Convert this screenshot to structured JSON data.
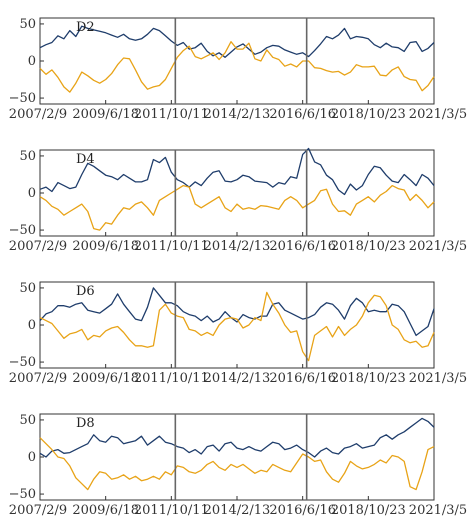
{
  "chart_data": [
    {
      "type": "line",
      "panel_label": "D2",
      "x_tick_labels": [
        "2007/2/9",
        "2009/6/18",
        "2011/10/11",
        "2014/2/13",
        "2016/6/16",
        "2018/10/23",
        "2021/3/5"
      ],
      "y_tick_labels": [
        "50",
        "0",
        "−50"
      ],
      "y_ticks": [
        50,
        0,
        -50
      ],
      "ylim": [
        -58,
        58
      ],
      "vertical_lines": [
        "2011/10/11",
        "2016/6/16"
      ],
      "series": [
        {
          "color": "#1f3d6b",
          "values": [
            18,
            22,
            25,
            34,
            30,
            41,
            33,
            47,
            44,
            42,
            40,
            38,
            35,
            32,
            36,
            30,
            28,
            30,
            36,
            44,
            41,
            34,
            27,
            21,
            25,
            16,
            18,
            24,
            13,
            7,
            11,
            5,
            12,
            19,
            23,
            16,
            9,
            12,
            18,
            21,
            20,
            15,
            12,
            9,
            11,
            6,
            14,
            23,
            33,
            30,
            35,
            44,
            30,
            33,
            32,
            30,
            22,
            18,
            24,
            19,
            18,
            13,
            25,
            26,
            13,
            17,
            25
          ]
        },
        {
          "color": "#e8a317",
          "values": [
            -10,
            -18,
            -12,
            -22,
            -35,
            -42,
            -30,
            -15,
            -20,
            -26,
            -30,
            -25,
            -17,
            -5,
            4,
            3,
            -12,
            -28,
            -38,
            -35,
            -33,
            -25,
            -10,
            5,
            14,
            20,
            6,
            3,
            7,
            11,
            2,
            11,
            26,
            16,
            16,
            24,
            3,
            0,
            15,
            5,
            2,
            -7,
            -4,
            -8,
            0,
            0,
            -9,
            -10,
            -13,
            -15,
            -14,
            -19,
            -15,
            -5,
            -8,
            -8,
            -7,
            -19,
            -20,
            -12,
            -8,
            -21,
            -25,
            -26,
            -40,
            -33,
            -21
          ]
        }
      ]
    },
    {
      "type": "line",
      "panel_label": "D4",
      "x_tick_labels": [
        "2007/2/9",
        "2009/6/18",
        "2011/10/11",
        "2014/2/13",
        "2016/6/16",
        "2018/10/23",
        "2021/3/5"
      ],
      "y_tick_labels": [
        "50",
        "0",
        "−50"
      ],
      "y_ticks": [
        50,
        0,
        -50
      ],
      "ylim": [
        -58,
        58
      ],
      "vertical_lines": [
        "2011/10/11",
        "2016/6/16"
      ],
      "series": [
        {
          "color": "#1f3d6b",
          "values": [
            5,
            8,
            2,
            14,
            10,
            6,
            8,
            25,
            40,
            36,
            30,
            24,
            22,
            18,
            25,
            20,
            15,
            15,
            18,
            45,
            41,
            48,
            28,
            18,
            14,
            8,
            15,
            10,
            20,
            28,
            30,
            16,
            15,
            18,
            24,
            22,
            16,
            15,
            14,
            8,
            14,
            12,
            22,
            20,
            52,
            60,
            42,
            38,
            24,
            18,
            4,
            -2,
            12,
            4,
            10,
            25,
            36,
            34,
            24,
            16,
            14,
            25,
            18,
            10,
            25,
            20,
            10
          ]
        },
        {
          "color": "#e8a317",
          "values": [
            -5,
            -10,
            -18,
            -22,
            -30,
            -25,
            -20,
            -15,
            -25,
            -48,
            -50,
            -40,
            -42,
            -30,
            -20,
            -22,
            -15,
            -12,
            -20,
            -30,
            -10,
            -5,
            0,
            5,
            10,
            8,
            -15,
            -20,
            -15,
            -10,
            -5,
            -20,
            -25,
            -15,
            -22,
            -20,
            -22,
            -17,
            -18,
            -20,
            -22,
            -10,
            -5,
            -10,
            -20,
            -15,
            -10,
            3,
            5,
            -15,
            -25,
            -24,
            -30,
            -15,
            -10,
            -5,
            -12,
            -3,
            2,
            10,
            6,
            4,
            -10,
            -2,
            -10,
            -20,
            -12
          ]
        }
      ]
    },
    {
      "type": "line",
      "panel_label": "D6",
      "x_tick_labels": [
        "2007/2/9",
        "2009/6/18",
        "2011/10/11",
        "2014/2/13",
        "2016/6/16",
        "2018/10/23",
        "2021/3/5"
      ],
      "y_tick_labels": [
        "50",
        "0",
        "−50"
      ],
      "y_ticks": [
        50,
        0,
        -50
      ],
      "ylim": [
        -58,
        58
      ],
      "vertical_lines": [
        "2011/10/11",
        "2016/6/16"
      ],
      "series": [
        {
          "color": "#1f3d6b",
          "values": [
            6,
            15,
            18,
            26,
            26,
            24,
            28,
            30,
            20,
            18,
            16,
            22,
            28,
            42,
            28,
            18,
            8,
            6,
            24,
            50,
            40,
            30,
            30,
            26,
            18,
            14,
            12,
            6,
            12,
            4,
            8,
            18,
            10,
            4,
            14,
            10,
            8,
            12,
            12,
            28,
            30,
            20,
            16,
            12,
            8,
            10,
            14,
            24,
            30,
            28,
            20,
            8,
            26,
            36,
            30,
            18,
            20,
            18,
            18,
            28,
            26,
            18,
            2,
            -14,
            -8,
            -2,
            22
          ]
        },
        {
          "color": "#e8a317",
          "values": [
            10,
            6,
            2,
            -8,
            -18,
            -12,
            -10,
            -6,
            -20,
            -14,
            -16,
            -8,
            -4,
            -2,
            -10,
            -20,
            -28,
            -28,
            -30,
            -28,
            20,
            28,
            16,
            12,
            10,
            -6,
            -8,
            -14,
            -10,
            -14,
            0,
            8,
            10,
            8,
            -4,
            0,
            10,
            6,
            44,
            28,
            16,
            0,
            -10,
            -8,
            -36,
            -48,
            -14,
            -8,
            -2,
            -16,
            -2,
            -14,
            -6,
            0,
            12,
            30,
            40,
            38,
            26,
            0,
            -6,
            -20,
            -24,
            -22,
            -30,
            -28,
            -10
          ]
        }
      ]
    },
    {
      "type": "line",
      "panel_label": "D8",
      "x_tick_labels": [
        "2007/2/9",
        "2009/6/18",
        "2011/10/11",
        "2014/2/13",
        "2016/6/16",
        "2018/10/23",
        "2021/3/5"
      ],
      "y_tick_labels": [
        "50",
        "0",
        "−50"
      ],
      "y_ticks": [
        50,
        0,
        -50
      ],
      "ylim": [
        -58,
        58
      ],
      "vertical_lines": [
        "2011/10/11",
        "2016/6/16"
      ],
      "series": [
        {
          "color": "#1f3d6b",
          "values": [
            5,
            0,
            8,
            10,
            5,
            6,
            10,
            14,
            18,
            30,
            22,
            20,
            28,
            26,
            18,
            20,
            22,
            28,
            16,
            22,
            28,
            20,
            18,
            14,
            12,
            6,
            10,
            4,
            14,
            16,
            8,
            18,
            20,
            12,
            10,
            14,
            10,
            8,
            14,
            20,
            18,
            10,
            12,
            16,
            10,
            6,
            0,
            8,
            12,
            6,
            4,
            12,
            14,
            18,
            12,
            14,
            16,
            26,
            30,
            24,
            30,
            34,
            40,
            46,
            52,
            48,
            40
          ]
        },
        {
          "color": "#e8a317",
          "values": [
            26,
            18,
            10,
            0,
            -2,
            -12,
            -28,
            -36,
            -44,
            -30,
            -20,
            -22,
            -30,
            -28,
            -24,
            -30,
            -26,
            -32,
            -30,
            -26,
            -30,
            -20,
            -24,
            -12,
            -14,
            -20,
            -22,
            -18,
            -10,
            -6,
            -14,
            -18,
            -10,
            -14,
            -10,
            -16,
            -22,
            -18,
            -20,
            -10,
            -14,
            -18,
            -20,
            -8,
            4,
            0,
            -6,
            -4,
            -20,
            -30,
            -34,
            -22,
            -6,
            -12,
            -16,
            -14,
            -10,
            -4,
            -8,
            2,
            0,
            -6,
            -40,
            -44,
            -20,
            10,
            14
          ]
        }
      ]
    }
  ]
}
